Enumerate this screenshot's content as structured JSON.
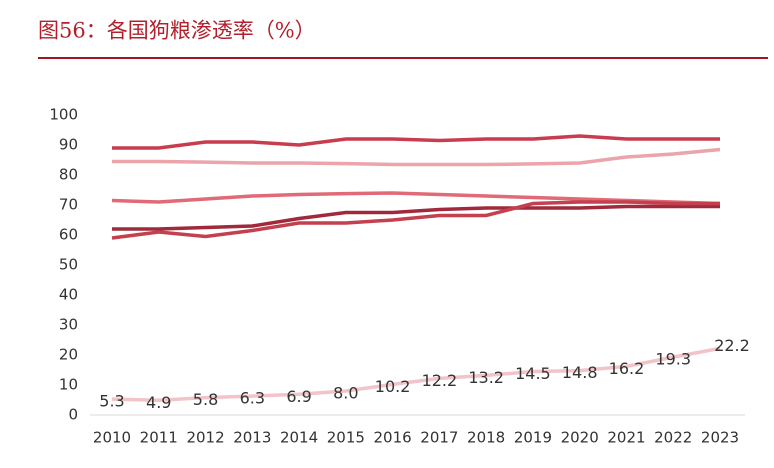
{
  "chart_data": {
    "type": "line",
    "title": "图56：各国狗粮渗透率（%）",
    "categories": [
      "2010",
      "2011",
      "2012",
      "2013",
      "2014",
      "2015",
      "2016",
      "2017",
      "2018",
      "2019",
      "2020",
      "2021",
      "2022",
      "2023"
    ],
    "ylim": [
      0,
      100
    ],
    "yticks": [
      0,
      10,
      20,
      30,
      40,
      50,
      60,
      70,
      80,
      90,
      100
    ],
    "series": [
      {
        "color": "#c83c4e",
        "values": [
          89,
          89,
          91,
          91,
          90,
          92,
          92,
          91.5,
          92,
          92,
          93,
          92,
          92,
          92
        ]
      },
      {
        "color": "#eaa4aa",
        "values": [
          84.5,
          84.5,
          84.3,
          84,
          84,
          83.8,
          83.5,
          83.5,
          83.5,
          83.7,
          84,
          86,
          87,
          88.5
        ]
      },
      {
        "color": "#e06a76",
        "values": [
          71.5,
          71,
          72,
          73,
          73.5,
          73.8,
          74,
          73.5,
          73,
          72.5,
          72,
          71.5,
          71,
          70.5
        ]
      },
      {
        "color": "#a02a3c",
        "values": [
          62,
          62,
          62.5,
          63,
          65.5,
          67.5,
          67.5,
          68.5,
          69,
          69,
          69,
          69.5,
          69.5,
          69.5
        ]
      },
      {
        "color": "#c4404f",
        "values": [
          59,
          61,
          59.5,
          61.5,
          64,
          64,
          65,
          66.5,
          66.5,
          70.5,
          71,
          71,
          70.5,
          70.5
        ]
      },
      {
        "color": "#f2c4c8",
        "values": [
          5.3,
          4.9,
          5.8,
          6.3,
          6.9,
          8.0,
          10.2,
          12.2,
          13.2,
          14.5,
          14.8,
          16.2,
          19.3,
          22.2
        ],
        "value_labels": [
          "5.3",
          "4.9",
          "5.8",
          "6.3",
          "6.9",
          "8.0",
          "10.2",
          "12.2",
          "13.2",
          "14.5",
          "14.8",
          "16.2",
          "19.3",
          "22.2"
        ]
      }
    ]
  }
}
